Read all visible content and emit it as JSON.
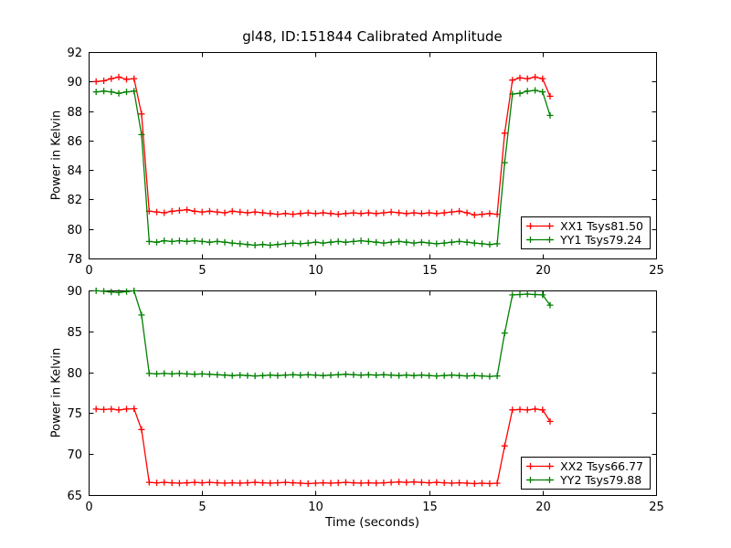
{
  "figure": {
    "title": "gl48, ID:151844 Calibrated Amplitude",
    "background": "#ffffff",
    "frame_color": "#000000"
  },
  "chart_data": [
    {
      "type": "line",
      "title": "gl48, ID:151844 Calibrated Amplitude",
      "xlabel": "",
      "ylabel": "Power in Kelvin",
      "xlim": [
        0,
        25
      ],
      "ylim": [
        78,
        92
      ],
      "xticks": [
        0,
        5,
        10,
        15,
        20,
        25
      ],
      "yticks": [
        78,
        80,
        82,
        84,
        86,
        88,
        90,
        92
      ],
      "grid": false,
      "legend_position": "lower right",
      "x": [
        0.33,
        0.67,
        1.0,
        1.33,
        1.67,
        2.0,
        2.33,
        2.67,
        3.0,
        3.33,
        3.67,
        4.0,
        4.33,
        4.67,
        5.0,
        5.33,
        5.67,
        6.0,
        6.33,
        6.67,
        7.0,
        7.33,
        7.67,
        8.0,
        8.33,
        8.67,
        9.0,
        9.33,
        9.67,
        10.0,
        10.33,
        10.67,
        11.0,
        11.33,
        11.67,
        12.0,
        12.33,
        12.67,
        13.0,
        13.33,
        13.67,
        14.0,
        14.33,
        14.67,
        15.0,
        15.33,
        15.67,
        16.0,
        16.33,
        16.67,
        17.0,
        17.33,
        17.67,
        18.0,
        18.33,
        18.67,
        19.0,
        19.33,
        19.67,
        20.0,
        20.33
      ],
      "series": [
        {
          "name": "XX1",
          "label": "XX1 Tsys81.50",
          "tsys": 81.5,
          "color": "#ff0000",
          "marker": "plus",
          "values": [
            90.0,
            90.05,
            90.2,
            90.3,
            90.15,
            90.2,
            87.8,
            81.2,
            81.15,
            81.1,
            81.2,
            81.25,
            81.3,
            81.2,
            81.15,
            81.2,
            81.15,
            81.1,
            81.2,
            81.15,
            81.1,
            81.15,
            81.1,
            81.05,
            81.0,
            81.05,
            81.0,
            81.05,
            81.1,
            81.05,
            81.1,
            81.05,
            81.0,
            81.05,
            81.1,
            81.05,
            81.1,
            81.05,
            81.1,
            81.15,
            81.1,
            81.05,
            81.1,
            81.05,
            81.1,
            81.05,
            81.1,
            81.15,
            81.2,
            81.1,
            80.95,
            81.0,
            81.05,
            81.0,
            86.5,
            90.1,
            90.25,
            90.2,
            90.3,
            90.2,
            89.0
          ]
        },
        {
          "name": "YY1",
          "label": "YY1 Tsys79.24",
          "tsys": 79.24,
          "color": "#008000",
          "marker": "plus",
          "values": [
            89.3,
            89.35,
            89.3,
            89.2,
            89.3,
            89.35,
            86.4,
            79.15,
            79.1,
            79.2,
            79.15,
            79.2,
            79.15,
            79.2,
            79.15,
            79.1,
            79.15,
            79.1,
            79.05,
            79.0,
            78.95,
            78.9,
            78.95,
            78.9,
            78.95,
            79.0,
            79.05,
            79.0,
            79.05,
            79.1,
            79.05,
            79.1,
            79.15,
            79.1,
            79.15,
            79.2,
            79.15,
            79.1,
            79.05,
            79.1,
            79.15,
            79.1,
            79.05,
            79.1,
            79.05,
            79.0,
            79.05,
            79.1,
            79.15,
            79.1,
            79.05,
            79.0,
            78.95,
            79.0,
            84.5,
            89.15,
            89.2,
            89.35,
            89.4,
            89.3,
            87.7
          ]
        }
      ]
    },
    {
      "type": "line",
      "title": "",
      "xlabel": "Time (seconds)",
      "ylabel": "Power in Kelvin",
      "xlim": [
        0,
        25
      ],
      "ylim": [
        65,
        90
      ],
      "xticks": [
        0,
        5,
        10,
        15,
        20,
        25
      ],
      "yticks": [
        65,
        70,
        75,
        80,
        85,
        90
      ],
      "grid": false,
      "legend_position": "lower right",
      "x": [
        0.33,
        0.67,
        1.0,
        1.33,
        1.67,
        2.0,
        2.33,
        2.67,
        3.0,
        3.33,
        3.67,
        4.0,
        4.33,
        4.67,
        5.0,
        5.33,
        5.67,
        6.0,
        6.33,
        6.67,
        7.0,
        7.33,
        7.67,
        8.0,
        8.33,
        8.67,
        9.0,
        9.33,
        9.67,
        10.0,
        10.33,
        10.67,
        11.0,
        11.33,
        11.67,
        12.0,
        12.33,
        12.67,
        13.0,
        13.33,
        13.67,
        14.0,
        14.33,
        14.67,
        15.0,
        15.33,
        15.67,
        16.0,
        16.33,
        16.67,
        17.0,
        17.33,
        17.67,
        18.0,
        18.33,
        18.67,
        19.0,
        19.33,
        19.67,
        20.0,
        20.33
      ],
      "series": [
        {
          "name": "XX2",
          "label": "XX2 Tsys66.77",
          "tsys": 66.77,
          "color": "#ff0000",
          "marker": "plus",
          "values": [
            75.5,
            75.45,
            75.5,
            75.4,
            75.5,
            75.55,
            73.0,
            66.55,
            66.5,
            66.55,
            66.5,
            66.45,
            66.5,
            66.55,
            66.5,
            66.55,
            66.5,
            66.45,
            66.5,
            66.45,
            66.5,
            66.55,
            66.5,
            66.45,
            66.5,
            66.55,
            66.5,
            66.45,
            66.4,
            66.45,
            66.5,
            66.45,
            66.5,
            66.55,
            66.5,
            66.45,
            66.5,
            66.45,
            66.5,
            66.55,
            66.6,
            66.55,
            66.6,
            66.55,
            66.5,
            66.55,
            66.5,
            66.45,
            66.5,
            66.45,
            66.4,
            66.45,
            66.4,
            66.45,
            71.0,
            75.4,
            75.45,
            75.4,
            75.5,
            75.4,
            74.0
          ]
        },
        {
          "name": "YY2",
          "label": "YY2 Tsys79.88",
          "tsys": 79.88,
          "color": "#008000",
          "marker": "plus",
          "values": [
            89.95,
            89.9,
            89.8,
            89.75,
            89.85,
            89.95,
            87.0,
            79.85,
            79.8,
            79.85,
            79.8,
            79.85,
            79.8,
            79.75,
            79.8,
            79.75,
            79.7,
            79.65,
            79.6,
            79.65,
            79.6,
            79.55,
            79.6,
            79.65,
            79.6,
            79.65,
            79.7,
            79.65,
            79.7,
            79.65,
            79.6,
            79.65,
            79.7,
            79.75,
            79.7,
            79.65,
            79.7,
            79.65,
            79.7,
            79.65,
            79.6,
            79.65,
            79.6,
            79.65,
            79.6,
            79.55,
            79.6,
            79.65,
            79.6,
            79.55,
            79.6,
            79.55,
            79.5,
            79.55,
            84.8,
            89.45,
            89.5,
            89.55,
            89.5,
            89.45,
            88.2
          ]
        }
      ]
    }
  ]
}
